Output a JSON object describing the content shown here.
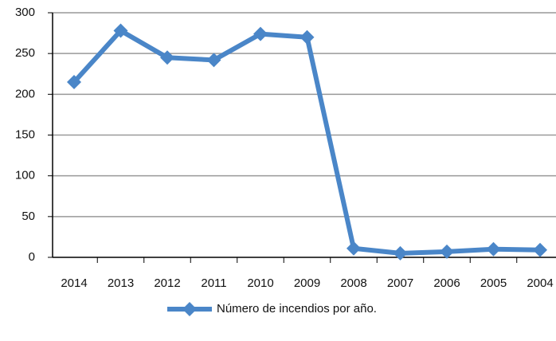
{
  "chart_data": {
    "type": "line",
    "categories": [
      "2014",
      "2013",
      "2012",
      "2011",
      "2010",
      "2009",
      "2008",
      "2007",
      "2006",
      "2005",
      "2004"
    ],
    "series": [
      {
        "name": "Número de incendios por año.",
        "color": "#4a86c8",
        "values": [
          215,
          278,
          245,
          242,
          274,
          270,
          11,
          5,
          7,
          10,
          9
        ]
      }
    ],
    "ylim": [
      0,
      300
    ],
    "yticks": [
      0,
      50,
      100,
      150,
      200,
      250,
      300
    ],
    "grid": true,
    "legend": "bottom"
  }
}
